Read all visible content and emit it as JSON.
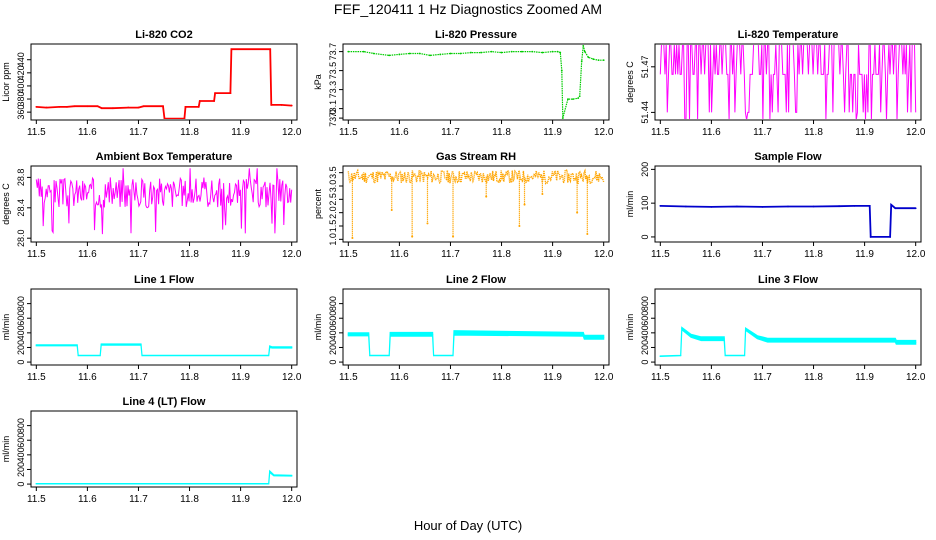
{
  "title": "FEF_120411  1 Hz Diagnostics Zoomed AM",
  "xlabel": "Hour of Day (UTC)",
  "chart_data": [
    {
      "type": "line",
      "title": "Li-820 CO2",
      "ylabel": "Licor ppm",
      "color": "#ff0000",
      "xlim": [
        11.5,
        12.0
      ],
      "xticks": [
        11.5,
        11.6,
        11.7,
        11.8,
        11.9,
        12.0
      ],
      "xtick_labels": [
        "11.5",
        "11.6",
        "11.7",
        "11.8",
        "11.9",
        "12.0"
      ],
      "ylim": [
        348,
        464
      ],
      "yticks": [
        360,
        380,
        400,
        420,
        440
      ],
      "ytick_labels": [
        "360",
        "380",
        "400",
        "420",
        "440"
      ],
      "style": "line",
      "series": [
        {
          "name": "CO2",
          "x": [
            11.5,
            11.52,
            11.545,
            11.56,
            11.575,
            11.6,
            11.62,
            11.628,
            11.65,
            11.68,
            11.7,
            11.71,
            11.748,
            11.751,
            11.79,
            11.792,
            11.818,
            11.82,
            11.848,
            11.85,
            11.88,
            11.882,
            11.958,
            11.96,
            11.98,
            12.0
          ],
          "y": [
            368,
            367,
            368,
            368,
            369,
            369,
            369,
            366,
            366,
            367,
            367,
            369,
            369,
            350,
            350,
            368,
            368,
            377,
            377,
            389,
            389,
            456,
            456,
            371,
            371,
            370
          ]
        }
      ]
    },
    {
      "type": "line",
      "title": "Li-820 Pressure",
      "ylabel": "kPa",
      "color": "#00cc00",
      "xlim": [
        11.5,
        12.0
      ],
      "xticks": [
        11.5,
        11.6,
        11.7,
        11.8,
        11.9,
        12.0
      ],
      "xtick_labels": [
        "11.5",
        "11.6",
        "11.7",
        "11.8",
        "11.9",
        "12.0"
      ],
      "ylim": [
        72.98,
        73.78
      ],
      "yticks": [
        73.0,
        73.1,
        73.3,
        73.5,
        73.7
      ],
      "ytick_labels": [
        "73.0",
        "73.1",
        "73.3",
        "73.5",
        "73.7"
      ],
      "style": "points",
      "series": [
        {
          "name": "Pressure",
          "x": [
            11.5,
            11.53,
            11.55,
            11.58,
            11.6,
            11.62,
            11.64,
            11.66,
            11.68,
            11.7,
            11.72,
            11.74,
            11.76,
            11.78,
            11.8,
            11.82,
            11.84,
            11.86,
            11.88,
            11.9,
            11.91,
            11.915,
            11.918,
            11.92,
            11.93,
            11.94,
            11.95,
            11.953,
            11.957,
            11.96,
            11.963,
            11.97,
            11.98,
            11.99,
            12.0
          ],
          "y": [
            73.7,
            73.7,
            73.68,
            73.66,
            73.67,
            73.68,
            73.68,
            73.66,
            73.67,
            73.68,
            73.68,
            73.69,
            73.69,
            73.7,
            73.69,
            73.7,
            73.7,
            73.7,
            73.69,
            73.7,
            73.7,
            73.69,
            73.5,
            73.0,
            73.2,
            73.2,
            73.21,
            73.23,
            73.6,
            73.76,
            73.7,
            73.64,
            73.62,
            73.61,
            73.61
          ]
        }
      ]
    },
    {
      "type": "line",
      "title": "Li-820 Temperature",
      "ylabel": "degrees C",
      "color": "#ff00ff",
      "xlim": [
        11.5,
        12.0
      ],
      "xticks": [
        11.5,
        11.6,
        11.7,
        11.8,
        11.9,
        12.0
      ],
      "xtick_labels": [
        "11.5",
        "11.6",
        "11.7",
        "11.8",
        "11.9",
        "12.0"
      ],
      "ylim": [
        51.435,
        51.485
      ],
      "yticks": [
        51.44,
        51.47
      ],
      "ytick_labels": [
        "51.44",
        "51.47"
      ],
      "style": "noise",
      "noise": {
        "count": 220,
        "levels": [
          51.485,
          51.465,
          51.44,
          51.435
        ],
        "seed": 7
      }
    },
    {
      "type": "line",
      "title": "Ambient Box Temperature",
      "ylabel": "degrees C",
      "color": "#ff00ff",
      "xlim": [
        11.5,
        12.0
      ],
      "xticks": [
        11.5,
        11.6,
        11.7,
        11.8,
        11.9,
        12.0
      ],
      "xtick_labels": [
        "11.5",
        "11.6",
        "11.7",
        "11.8",
        "11.9",
        "12.0"
      ],
      "ylim": [
        27.95,
        28.95
      ],
      "yticks": [
        28.0,
        28.4,
        28.8
      ],
      "ytick_labels": [
        "28.0",
        "28.4",
        "28.8"
      ],
      "style": "noise",
      "noise": {
        "count": 260,
        "center": 28.6,
        "spread": 0.2,
        "spikes_low": 28.05,
        "spikes_high": 28.92,
        "seed": 3
      }
    },
    {
      "type": "scatter",
      "title": "Gas Stream RH",
      "ylabel": "percent",
      "color": "#ffa500",
      "xlim": [
        11.5,
        12.0
      ],
      "xticks": [
        11.5,
        11.6,
        11.7,
        11.8,
        11.9,
        12.0
      ],
      "xtick_labels": [
        "11.5",
        "11.6",
        "11.7",
        "11.8",
        "11.9",
        "12.0"
      ],
      "ylim": [
        0.9,
        3.75
      ],
      "yticks": [
        1.0,
        1.5,
        2.0,
        2.5,
        3.0,
        3.5
      ],
      "ytick_labels": [
        "1.0",
        "1.5",
        "2.0",
        "2.5",
        "3.0",
        "3.5"
      ],
      "style": "rhnoise",
      "noise": {
        "count": 300,
        "center": 3.35,
        "spread": 0.25,
        "seed": 11
      },
      "dips": [
        {
          "x": 11.508,
          "y": 1.05
        },
        {
          "x": 11.585,
          "y": 2.1
        },
        {
          "x": 11.625,
          "y": 1.1
        },
        {
          "x": 11.655,
          "y": 1.6
        },
        {
          "x": 11.705,
          "y": 1.1
        },
        {
          "x": 11.77,
          "y": 2.6
        },
        {
          "x": 11.835,
          "y": 1.5
        },
        {
          "x": 11.845,
          "y": 2.3
        },
        {
          "x": 11.88,
          "y": 2.7
        },
        {
          "x": 11.948,
          "y": 2.0
        },
        {
          "x": 11.968,
          "y": 1.2
        }
      ]
    },
    {
      "type": "line",
      "title": "Sample Flow",
      "ylabel": "ml/min",
      "color": "#0000cc",
      "xlim": [
        11.5,
        12.0
      ],
      "xticks": [
        11.5,
        11.6,
        11.7,
        11.8,
        11.9,
        12.0
      ],
      "xtick_labels": [
        "11.5",
        "11.6",
        "11.7",
        "11.8",
        "11.9",
        "12.0"
      ],
      "ylim": [
        -15,
        210
      ],
      "yticks": [
        0,
        100,
        200
      ],
      "ytick_labels": [
        "0",
        "100",
        "200"
      ],
      "style": "line",
      "series": [
        {
          "name": "Sample",
          "x": [
            11.5,
            11.55,
            11.6,
            11.65,
            11.7,
            11.75,
            11.8,
            11.85,
            11.88,
            11.91,
            11.912,
            11.95,
            11.952,
            11.96,
            12.0
          ],
          "y": [
            92,
            90,
            89,
            90,
            89,
            90,
            90,
            91,
            92,
            92,
            0,
            0,
            95,
            85,
            85
          ]
        }
      ]
    },
    {
      "type": "line",
      "title": "Line 1 Flow",
      "ylabel": "ml/min",
      "color": "#00ffff",
      "xlim": [
        11.5,
        12.0
      ],
      "xticks": [
        11.5,
        11.6,
        11.7,
        11.8,
        11.9,
        12.0
      ],
      "xtick_labels": [
        "11.5",
        "11.6",
        "11.7",
        "11.8",
        "11.9",
        "12.0"
      ],
      "ylim": [
        -40,
        1000
      ],
      "yticks": [
        0,
        200,
        400,
        600,
        800
      ],
      "ytick_labels": [
        "0",
        "200",
        "400",
        "600",
        "800"
      ],
      "style": "band",
      "series": [
        {
          "name": "Line1",
          "x": [
            11.5,
            11.58,
            11.582,
            11.625,
            11.627,
            11.705,
            11.707,
            11.955,
            11.957,
            11.962,
            12.0
          ],
          "y": [
            230,
            230,
            90,
            90,
            240,
            240,
            90,
            90,
            210,
            200,
            200
          ],
          "width": [
            14,
            14,
            4,
            4,
            14,
            14,
            4,
            4,
            20,
            14,
            14
          ]
        }
      ]
    },
    {
      "type": "line",
      "title": "Line 2 Flow",
      "ylabel": "ml/min",
      "color": "#00ffff",
      "xlim": [
        11.5,
        12.0
      ],
      "xticks": [
        11.5,
        11.6,
        11.7,
        11.8,
        11.9,
        12.0
      ],
      "xtick_labels": [
        "11.5",
        "11.6",
        "11.7",
        "11.8",
        "11.9",
        "12.0"
      ],
      "ylim": [
        -40,
        1000
      ],
      "yticks": [
        0,
        200,
        400,
        600,
        800
      ],
      "ytick_labels": [
        "0",
        "200",
        "400",
        "600",
        "800"
      ],
      "style": "band",
      "series": [
        {
          "name": "Line2",
          "x": [
            11.5,
            11.54,
            11.542,
            11.58,
            11.582,
            11.665,
            11.667,
            11.705,
            11.707,
            11.96,
            11.962,
            12.0
          ],
          "y": [
            380,
            380,
            90,
            90,
            380,
            380,
            90,
            90,
            400,
            380,
            340,
            340
          ],
          "width": [
            40,
            40,
            6,
            6,
            50,
            50,
            6,
            6,
            60,
            50,
            50,
            50
          ]
        }
      ]
    },
    {
      "type": "line",
      "title": "Line 3 Flow",
      "ylabel": "ml/min",
      "color": "#00ffff",
      "xlim": [
        11.5,
        12.0
      ],
      "xticks": [
        11.5,
        11.6,
        11.7,
        11.8,
        11.9,
        12.0
      ],
      "xtick_labels": [
        "11.5",
        "11.6",
        "11.7",
        "11.8",
        "11.9",
        "12.0"
      ],
      "ylim": [
        -40,
        1000
      ],
      "yticks": [
        0,
        200,
        400,
        600,
        800
      ],
      "ytick_labels": [
        "0",
        "200",
        "400",
        "600",
        "800"
      ],
      "style": "band",
      "series": [
        {
          "name": "Line3",
          "x": [
            11.5,
            11.54,
            11.542,
            11.56,
            11.58,
            11.625,
            11.627,
            11.665,
            11.667,
            11.69,
            11.71,
            11.96,
            11.962,
            12.0
          ],
          "y": [
            80,
            90,
            460,
            360,
            320,
            320,
            90,
            90,
            450,
            340,
            300,
            300,
            270,
            270
          ],
          "width": [
            6,
            6,
            30,
            40,
            50,
            50,
            6,
            6,
            30,
            40,
            50,
            50,
            50,
            50
          ]
        }
      ]
    },
    {
      "type": "line",
      "title": "Line 4 (LT) Flow",
      "ylabel": "ml/min",
      "color": "#00ffff",
      "xlim": [
        11.5,
        12.0
      ],
      "xticks": [
        11.5,
        11.6,
        11.7,
        11.8,
        11.9,
        12.0
      ],
      "xtick_labels": [
        "11.5",
        "11.6",
        "11.7",
        "11.8",
        "11.9",
        "12.0"
      ],
      "ylim": [
        -40,
        1000
      ],
      "yticks": [
        0,
        200,
        400,
        600,
        800
      ],
      "ytick_labels": [
        "0",
        "200",
        "400",
        "600",
        "800"
      ],
      "style": "band",
      "series": [
        {
          "name": "Line4",
          "x": [
            11.5,
            11.955,
            11.957,
            11.965,
            12.0
          ],
          "y": [
            5,
            5,
            170,
            120,
            115
          ],
          "width": [
            4,
            4,
            20,
            14,
            10
          ]
        }
      ]
    }
  ]
}
